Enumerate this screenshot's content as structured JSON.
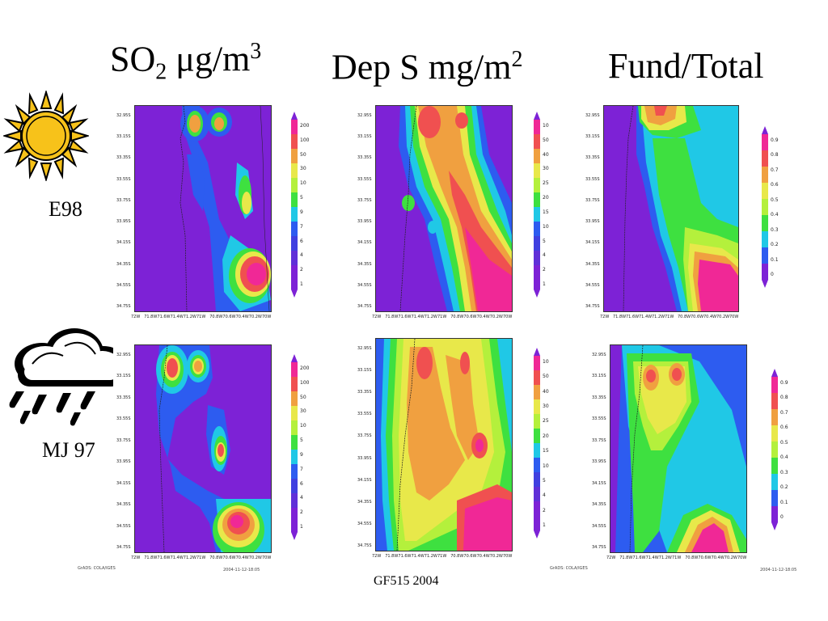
{
  "columns": {
    "so2": {
      "main": "SO",
      "sub": "2",
      "mid": " μg/m",
      "sup": "3"
    },
    "dep": {
      "main": "Dep S mg/m",
      "sup": "2"
    },
    "frac": {
      "main": "Fund/Total"
    }
  },
  "rows": {
    "e98": {
      "label": "E98",
      "icon": "sun-icon"
    },
    "mj97": {
      "label": "MJ 97",
      "icon": "rain-cloud-icon"
    }
  },
  "footer": "GF515 2004",
  "axes": {
    "y_ticks": [
      "32.95S",
      "33.15S",
      "33.35S",
      "33.55S",
      "33.75S",
      "33.95S",
      "34.15S",
      "34.35S",
      "34.55S",
      "34.75S"
    ],
    "x_ticks": [
      "72W",
      "71.8W",
      "71.6W",
      "71.4W",
      "71.2W",
      "71W",
      "70.8W",
      "70.6W",
      "70.4W",
      "70.2W",
      "70W"
    ]
  },
  "colorbars": {
    "so2": [
      "200",
      "100",
      "50",
      "30",
      "10",
      "5",
      "9",
      "7",
      "6",
      "4",
      "2",
      "1"
    ],
    "dep": [
      "10",
      "50",
      "40",
      "30",
      "25",
      "20",
      "15",
      "10",
      "5",
      "4",
      "2",
      "1"
    ],
    "frac": [
      "0.9",
      "0.8",
      "0.7",
      "0.6",
      "0.5",
      "0.4",
      "0.3",
      "0.2",
      "0.1",
      "0"
    ]
  },
  "credits": {
    "left": "GrADS: COLA/IGES",
    "right": "2004-11-12-18:05"
  },
  "colors": {
    "background": "#7d22d6",
    "blue": "#2d5cf0",
    "cyan": "#20c8e6",
    "green": "#3ee040",
    "lightgreen": "#b4f03c",
    "yellow": "#e8e84a",
    "orange": "#f0a040",
    "red": "#f05050",
    "magenta": "#f02896"
  }
}
